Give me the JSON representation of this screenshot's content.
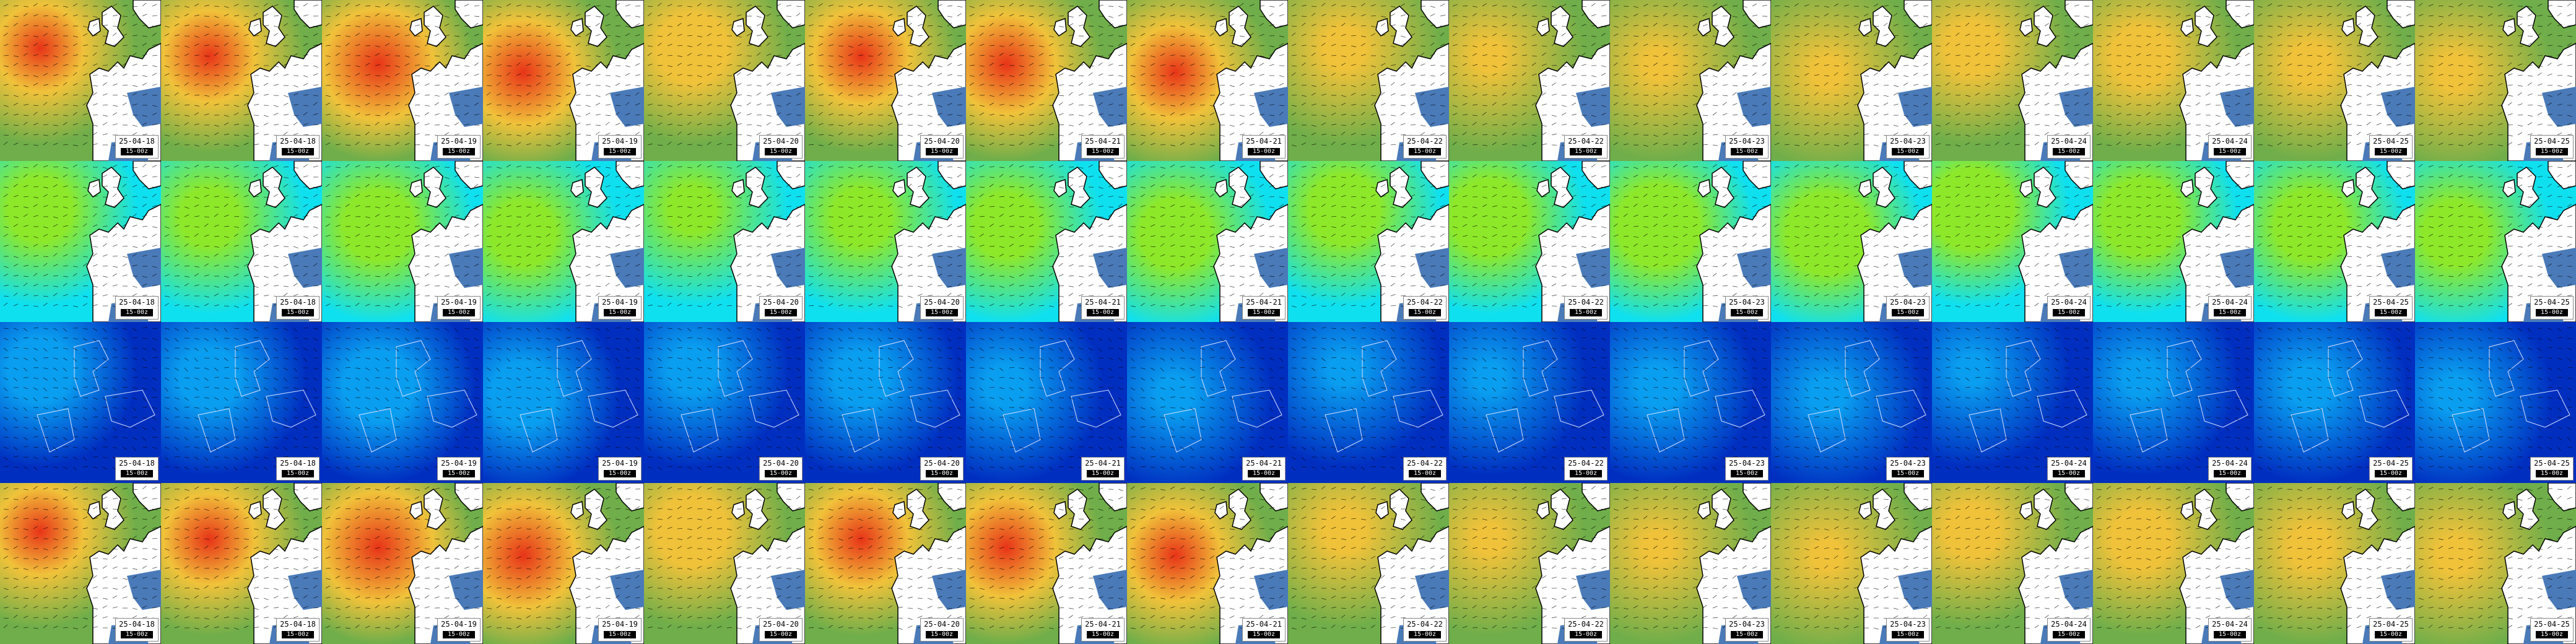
{
  "panel_label": "15-00z",
  "date_labels": [
    "25-04-18",
    "25-04-18",
    "25-04-19",
    "25-04-19",
    "25-04-20",
    "25-04-20",
    "25-04-21",
    "25-04-21",
    "25-04-22",
    "25-04-22",
    "25-04-23",
    "25-04-23",
    "25-04-24",
    "25-04-24",
    "25-04-25",
    "25-04-25"
  ],
  "rows": [
    {
      "name": "row-1",
      "region": "atlantic",
      "palette": "wave",
      "intensity": [
        0.75,
        0.78,
        0.95,
        0.9,
        0.6,
        0.82,
        0.85,
        0.8,
        0.35,
        0.2,
        0.22,
        0.25,
        0.45,
        0.5,
        0.35,
        0.3
      ]
    },
    {
      "name": "row-2",
      "region": "atlantic",
      "palette": "period",
      "intensity": [
        0.55,
        0.5,
        0.6,
        0.55,
        0.4,
        0.5,
        0.55,
        0.6,
        0.6,
        0.65,
        0.7,
        0.7,
        0.7,
        0.65,
        0.6,
        0.55
      ]
    },
    {
      "name": "row-3",
      "region": "europe",
      "palette": "wind",
      "intensity": [
        0.55,
        0.5,
        0.6,
        0.55,
        0.4,
        0.45,
        0.35,
        0.3,
        0.2,
        0.25,
        0.35,
        0.3,
        0.25,
        0.3,
        0.35,
        0.3
      ]
    },
    {
      "name": "row-4",
      "region": "atlantic",
      "palette": "wave",
      "intensity": [
        0.75,
        0.78,
        0.95,
        0.9,
        0.6,
        0.82,
        0.85,
        0.8,
        0.35,
        0.2,
        0.22,
        0.25,
        0.45,
        0.5,
        0.35,
        0.3
      ]
    }
  ],
  "colors": {
    "land": "#ffffff",
    "coast": "#000000",
    "lake": "#4a7ab8",
    "wave_low": "#6fae4a",
    "wave_mid": "#f0c23a",
    "wave_high": "#e83418",
    "period_low": "#0fe0f0",
    "period_mid": "#8ee82a",
    "period_high": "#22d832",
    "wind_low": "#002fc0",
    "wind_mid": "#0a9ef0",
    "wind_high": "#1ee8f0"
  }
}
